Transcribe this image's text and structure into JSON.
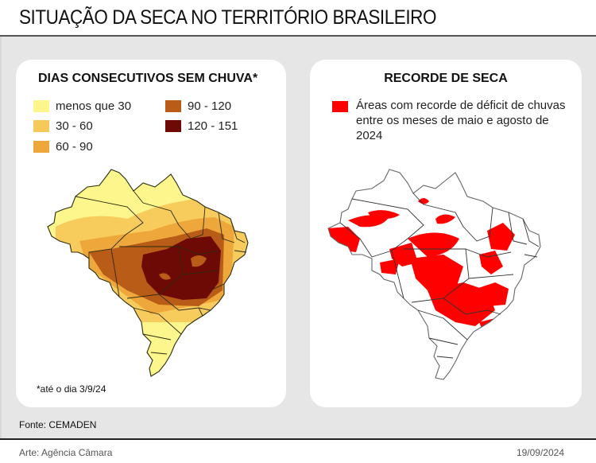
{
  "title": "SITUAÇÃO DA SECA NO TERRITÓRIO BRASILEIRO",
  "left_map": {
    "title": "DIAS CONSECUTIVOS SEM CHUVA*",
    "legend": [
      {
        "label": "menos que 30",
        "color": "#fdf68c"
      },
      {
        "label": "30 - 60",
        "color": "#f7c95a"
      },
      {
        "label": "60 - 90",
        "color": "#eea73a"
      },
      {
        "label": "90 - 120",
        "color": "#b85c17"
      },
      {
        "label": "120 - 151",
        "color": "#6e0a05"
      }
    ],
    "note": "*até o dia 3/9/24"
  },
  "right_map": {
    "title": "RECORDE DE SECA",
    "legend_label": "Áreas com recorde de déficit de chuvas entre os meses de maio e agosto de 2024",
    "legend_color": "#ff0000"
  },
  "source": "Fonte: CEMADEN",
  "credit": "Arte: Agência Câmara",
  "date": "19/09/2024"
}
